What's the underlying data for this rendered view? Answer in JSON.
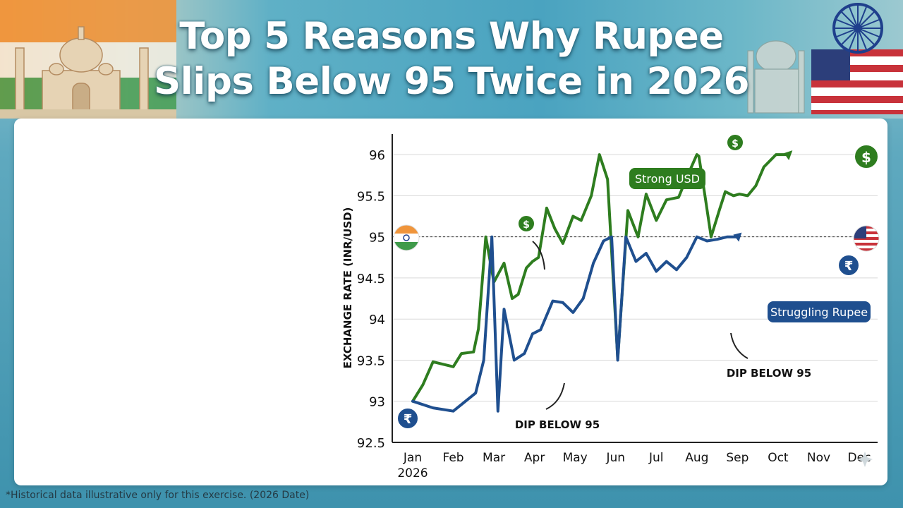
{
  "header": {
    "title_line1": "Top 5 Reasons Why Rupee",
    "title_line2": "Slips Below 95 Twice in 2026"
  },
  "footnote": "*Historical data illustrative only for this exercise. (2026 Date)",
  "chart_data": {
    "type": "line",
    "title": "",
    "xlabel": "",
    "ylabel": "EXCHANGE RATE (INR/USD)",
    "ylim": [
      92.5,
      96.25
    ],
    "yticks": [
      "92.5",
      "93",
      "93.5",
      "94",
      "94.5",
      "95",
      "95.5",
      "96"
    ],
    "grid": true,
    "reference_line": 95,
    "x_tick_labels": [
      "Jan",
      "Feb",
      "Mar",
      "Apr",
      "May",
      "Jun",
      "Jul",
      "Aug",
      "Sep",
      "Oct",
      "Nov",
      "Dec"
    ],
    "x_tick_sublabel": "2026",
    "series": [
      {
        "name": "Strong USD",
        "color": "#2e7d1f",
        "x": [
          0,
          0.25,
          0.5,
          0.75,
          1,
          1.2,
          1.5,
          1.62,
          1.8,
          2.0,
          2.25,
          2.45,
          2.6,
          2.8,
          2.95,
          3.1,
          3.3,
          3.5,
          3.7,
          3.95,
          4.15,
          4.4,
          4.6,
          4.8,
          5.05,
          5.3,
          5.55,
          5.75,
          6.0,
          6.25,
          6.55,
          6.75,
          7.0,
          7.05,
          7.2,
          7.35,
          7.55,
          7.7,
          7.9,
          8.05,
          8.25,
          8.45,
          8.65,
          8.95,
          9.25
        ],
        "values": [
          93.0,
          93.2,
          93.48,
          93.45,
          93.42,
          93.58,
          93.6,
          93.88,
          95.0,
          94.45,
          94.68,
          94.25,
          94.3,
          94.62,
          94.7,
          94.75,
          95.35,
          95.1,
          94.92,
          95.25,
          95.2,
          95.5,
          96.0,
          95.7,
          93.52,
          95.32,
          95.0,
          95.52,
          95.2,
          95.45,
          95.48,
          95.72,
          96.0,
          95.98,
          95.5,
          95.0,
          95.32,
          95.55,
          95.5,
          95.52,
          95.5,
          95.62,
          95.85,
          96.0,
          96.0
        ],
        "label_note": "Strong USD"
      },
      {
        "name": "Struggling Rupee",
        "color": "#1f4f8f",
        "x": [
          0,
          0.5,
          1,
          1.55,
          1.75,
          1.95,
          2.1,
          2.25,
          2.5,
          2.75,
          2.95,
          3.15,
          3.45,
          3.7,
          3.95,
          4.2,
          4.45,
          4.7,
          4.9,
          5.05,
          5.25,
          5.5,
          5.75,
          6.0,
          6.25,
          6.5,
          6.75,
          7.0,
          7.25,
          7.5,
          7.75,
          8.0
        ],
        "values": [
          93.0,
          92.92,
          92.88,
          93.1,
          93.5,
          95.0,
          92.88,
          94.12,
          93.5,
          93.58,
          93.82,
          93.87,
          94.22,
          94.2,
          94.08,
          94.25,
          94.68,
          94.95,
          95.0,
          93.5,
          95.0,
          94.7,
          94.8,
          94.58,
          94.7,
          94.6,
          94.75,
          95.0,
          94.95,
          94.97,
          95.0,
          95.0
        ],
        "label_note": "Struggling Rupee"
      }
    ],
    "annotations": [
      "DIP BELOW 95",
      "DIP BELOW 95"
    ]
  }
}
